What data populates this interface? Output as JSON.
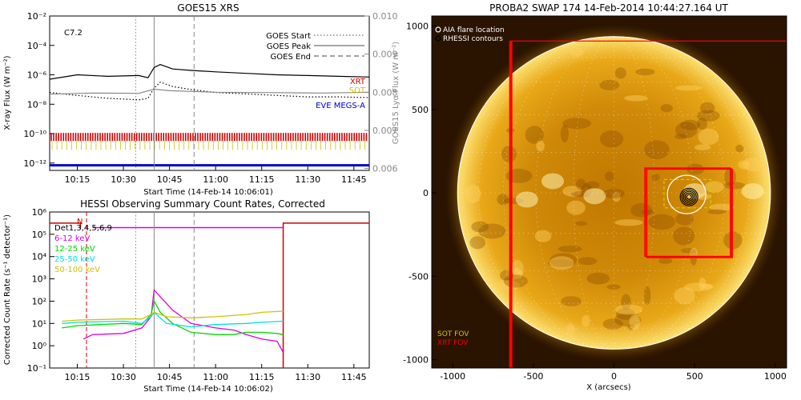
{
  "chart_data": [
    {
      "type": "line",
      "title": "GOES15 XRS",
      "xlabel": "Start Time (14-Feb-14 10:06:01)",
      "ylabel": "X-ray Flux (W m⁻²)",
      "ylabel_right": "GOES15 Lyα Flux (W m⁻²)",
      "x_ticks": [
        "10:15",
        "10:30",
        "10:45",
        "11:00",
        "11:15",
        "11:30",
        "11:45"
      ],
      "x_range": [
        "10:06",
        "11:50"
      ],
      "y_ticks": [
        "10⁻²",
        "10⁻⁴",
        "10⁻⁶",
        "10⁻⁸",
        "10⁻¹⁰",
        "10⁻¹²"
      ],
      "y_log_range": [
        -12.5,
        -2
      ],
      "y_right_ticks": [
        "0.010",
        "0.009",
        "0.008",
        "0.007",
        "0.006"
      ],
      "y_right_range": [
        0.00595,
        0.01
      ],
      "flare_class": "C7.2",
      "legend": [
        {
          "label": "GOES Start",
          "style": "dotted",
          "color": "#888888"
        },
        {
          "label": "GOES Peak",
          "style": "solid",
          "color": "#888888"
        },
        {
          "label": "GOES End",
          "style": "dashed",
          "color": "#888888"
        }
      ],
      "instrument_labels": [
        {
          "label": "XRT",
          "color": "#cc0000"
        },
        {
          "label": "SOT",
          "color": "#d4c000"
        },
        {
          "label": "EVE MEGS-A",
          "color": "#0000cc"
        }
      ],
      "event_times": {
        "start": "10:34",
        "peak": "10:40",
        "end": "10:53"
      },
      "series": [
        {
          "name": "long",
          "color": "#000000",
          "style": "solid",
          "x": [
            "10:06",
            "10:15",
            "10:25",
            "10:35",
            "10:38",
            "10:40",
            "10:42",
            "10:46",
            "10:52",
            "11:00",
            "11:10",
            "11:20",
            "11:30",
            "11:40",
            "11:50"
          ],
          "y": [
            -6.3,
            -6.0,
            -6.1,
            -6.05,
            -6.2,
            -5.5,
            -5.3,
            -5.6,
            -5.7,
            -5.8,
            -5.9,
            -6.0,
            -6.05,
            -6.1,
            -6.15
          ]
        },
        {
          "name": "short",
          "color": "#000000",
          "style": "dotted",
          "x": [
            "10:06",
            "10:15",
            "10:25",
            "10:35",
            "10:38",
            "10:40",
            "10:42",
            "10:46",
            "10:52",
            "11:00",
            "11:10",
            "11:20",
            "11:30",
            "11:40",
            "11:50"
          ],
          "y": [
            -7.2,
            -7.4,
            -7.6,
            -7.7,
            -7.6,
            -6.9,
            -6.5,
            -6.8,
            -7.0,
            -7.2,
            -7.3,
            -7.4,
            -7.5,
            -7.5,
            -7.55
          ]
        },
        {
          "name": "lyman-alpha",
          "color": "#888888",
          "style": "solid",
          "x": [
            "10:06",
            "10:20",
            "10:35",
            "10:40",
            "10:45",
            "11:00",
            "11:20",
            "11:35",
            "11:50"
          ],
          "y": [
            0.00795,
            0.00798,
            0.00797,
            0.00808,
            0.00804,
            0.008,
            0.00799,
            0.00798,
            0.008
          ]
        }
      ]
    },
    {
      "type": "line",
      "title": "HESSI Observing Summary Count Rates, Corrected",
      "xlabel": "Start Time (14-Feb-14 10:06:02)",
      "ylabel": "Corrected Count Rate (s⁻¹ detector⁻¹)",
      "x_ticks": [
        "10:15",
        "10:30",
        "10:45",
        "11:00",
        "11:15",
        "11:30",
        "11:45"
      ],
      "x_range": [
        "10:06",
        "11:50"
      ],
      "y_ticks": [
        "10⁶",
        "10⁵",
        "10⁴",
        "10³",
        "10²",
        "10¹",
        "10⁰",
        "10⁻¹"
      ],
      "y_log_range": [
        -1,
        6
      ],
      "detectors_label": "Det1,3,4,5,6,9",
      "night_label": "N",
      "annotation_flags": {
        "n": "N"
      },
      "legend": [
        {
          "label": "6-12 keV",
          "color": "#e000e0"
        },
        {
          "label": "12-25 keV",
          "color": "#00d800"
        },
        {
          "label": "25-50 keV",
          "color": "#00e0e0"
        },
        {
          "label": "50-100 keV",
          "color": "#d4c000"
        }
      ],
      "series": [
        {
          "name": "6-12 keV",
          "color": "#e000e0",
          "x": [
            "10:17",
            "10:20",
            "10:30",
            "10:36",
            "10:39",
            "10:40",
            "10:42",
            "10:46",
            "10:52",
            "11:00",
            "11:06",
            "11:10",
            "11:15",
            "11:20",
            "11:22"
          ],
          "y": [
            0.3,
            0.5,
            0.55,
            0.8,
            1.3,
            2.5,
            2.2,
            1.6,
            1.0,
            0.8,
            0.7,
            0.5,
            0.3,
            0.2,
            -0.3
          ]
        },
        {
          "name": "12-25 keV",
          "color": "#00d800",
          "x": [
            "10:10",
            "10:15",
            "10:30",
            "10:36",
            "10:39",
            "10:40",
            "10:42",
            "10:46",
            "10:52",
            "11:00",
            "11:06",
            "11:10",
            "11:15",
            "11:20",
            "11:22"
          ],
          "y": [
            0.8,
            0.9,
            1.0,
            0.95,
            1.4,
            2.0,
            1.5,
            1.0,
            0.6,
            0.5,
            0.5,
            0.6,
            0.6,
            0.55,
            0.5
          ]
        },
        {
          "name": "25-50 keV",
          "color": "#00e0e0",
          "x": [
            "10:10",
            "10:15",
            "10:30",
            "10:36",
            "10:39",
            "10:40",
            "10:44",
            "10:52",
            "11:00",
            "11:10",
            "11:15",
            "11:22"
          ],
          "y": [
            1.0,
            1.05,
            1.1,
            1.0,
            1.3,
            1.5,
            1.0,
            0.85,
            0.95,
            1.0,
            1.05,
            1.1
          ]
        },
        {
          "name": "50-100 keV",
          "color": "#d4c000",
          "x": [
            "10:10",
            "10:15",
            "10:30",
            "10:36",
            "10:39",
            "10:40",
            "10:44",
            "10:52",
            "11:00",
            "11:10",
            "11:15",
            "11:22"
          ],
          "y": [
            1.1,
            1.15,
            1.2,
            1.2,
            1.4,
            1.5,
            1.3,
            1.25,
            1.3,
            1.4,
            1.5,
            1.55
          ]
        }
      ]
    },
    {
      "type": "scatter",
      "title": "PROBA2 SWAP 174 14-Feb-2014 10:44:27.164 UT",
      "xlabel": "X (arcsecs)",
      "ylabel": "",
      "x_ticks": [
        "-1000",
        "-500",
        "0",
        "500",
        "1000"
      ],
      "y_ticks": [
        "1000",
        "500",
        "0",
        "-500",
        "-1000"
      ],
      "xlim": [
        -1130,
        1070
      ],
      "ylim": [
        -1050,
        1060
      ],
      "legend": [
        {
          "label": "AIA flare location",
          "color": "#ffffff"
        },
        {
          "label": "RHESSI contours",
          "color": "#000000"
        }
      ],
      "fov_labels": [
        {
          "label": "SOT FOV",
          "color": "#d4c000"
        },
        {
          "label": "XRT FOV",
          "color": "#ff0000"
        }
      ],
      "flare_location": {
        "x": 450,
        "y": -10
      },
      "disk_radius": 970
    }
  ]
}
